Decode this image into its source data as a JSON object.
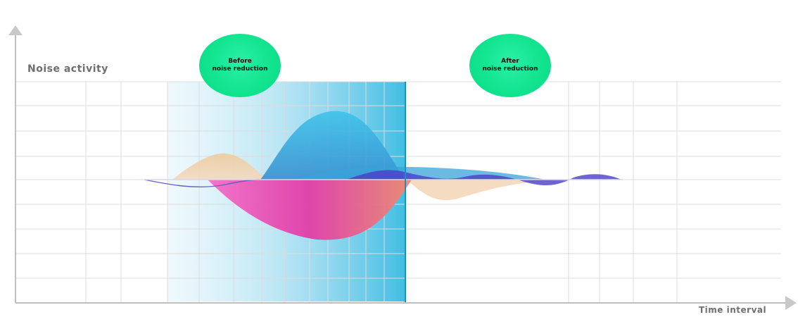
{
  "y_axis_title": "Noise activity",
  "x_axis_title": "Time interval",
  "phases": [
    {
      "line1": "Before",
      "line2": "noise reduction"
    },
    {
      "line1": "After",
      "line2": "noise reduction"
    }
  ],
  "colors": {
    "badge": "#12e48f",
    "blue_wave": "#3fb3df",
    "pink_wave": "#e83fb0",
    "peach_wave": "#e9c9a7",
    "purple_wave": "#4b3fc7",
    "highlight_band": "#4cc0e4",
    "divider": "#1d8fc0",
    "grid": "#dcdcdc",
    "axis": "#bfbfbf"
  }
}
